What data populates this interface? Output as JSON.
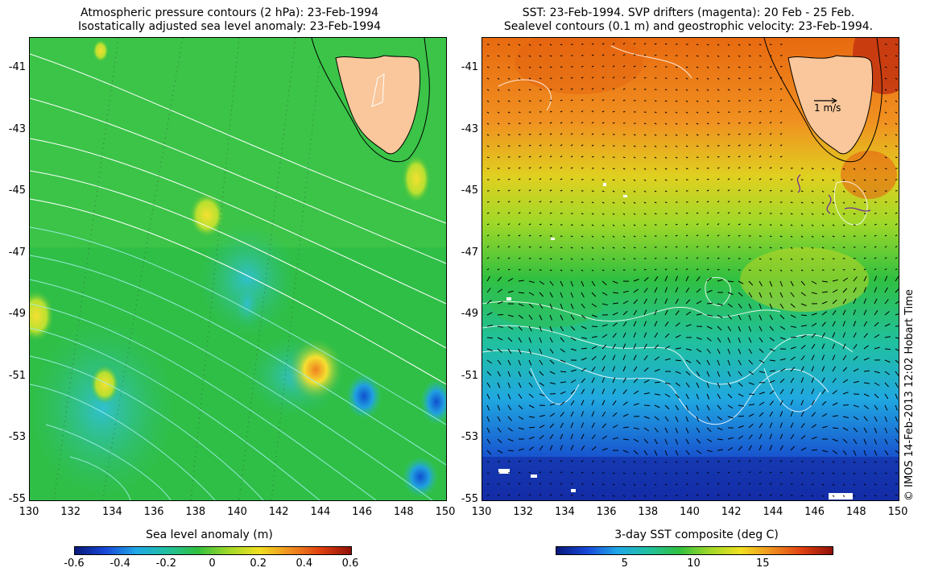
{
  "left": {
    "title_line1": "Atmospheric pressure contours (2 hPa): 23-Feb-1994",
    "title_line2": "Isostatically adjusted sea level anomaly: 23-Feb-1994",
    "colorbar_label": "Sea level anomaly (m)",
    "colorbar_ticks": [
      "-0.6",
      "-0.4",
      "-0.2",
      "0",
      "0.2",
      "0.4",
      "0.6"
    ]
  },
  "right": {
    "title_line1": "SST: 23-Feb-1994. SVP drifters (magenta): 20 Feb - 25 Feb.",
    "title_line2": "Sealevel contours (0.1 m) and geostrophic velocity: 23-Feb-1994.",
    "colorbar_label": "3-day SST composite (deg C)",
    "colorbar_ticks": [
      "5",
      "10",
      "15"
    ],
    "velocity_key": "1 m/s"
  },
  "axes": {
    "lat_ticks": [
      "-41",
      "-43",
      "-45",
      "-47",
      "-49",
      "-51",
      "-53",
      "-55"
    ],
    "lon_ticks": [
      "130",
      "132",
      "134",
      "136",
      "138",
      "140",
      "142",
      "144",
      "146",
      "148",
      "150"
    ],
    "lon_range": [
      130,
      150
    ],
    "lat_range": [
      -55,
      -40
    ]
  },
  "credit": "© IMOS 14-Feb-2013 12:02 Hobart Time",
  "colors": {
    "land": "#f9c79b",
    "ocean_green": "#2fc24a",
    "sla_high": "#f0e020",
    "sla_low": "#1a6ee0",
    "sst_warm": "#e07010",
    "sst_cold": "#1030c0"
  }
}
